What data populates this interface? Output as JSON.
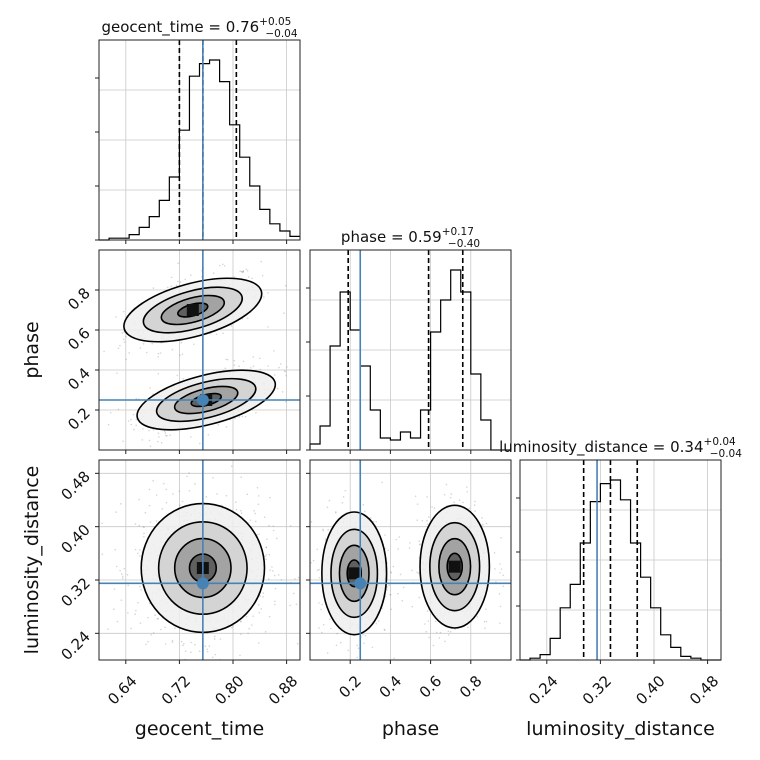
{
  "chart_data": {
    "type": "corner",
    "parameters": [
      "geocent_time",
      "phase",
      "luminosity_distance"
    ],
    "injection": {
      "geocent_time": 0.755,
      "phase": 0.25,
      "luminosity_distance": 0.315
    },
    "colors": {
      "injection": "#4682b4",
      "histogram": "#000000",
      "grid": "#c8c8c8",
      "samples": "#888888"
    },
    "diagonal": [
      {
        "param": "geocent_time",
        "title": "geocent_time = 0.76",
        "title_sup": "+0.05",
        "title_sub": "−0.04",
        "range": [
          0.6,
          0.9
        ],
        "bins": [
          0.6,
          0.615,
          0.63,
          0.645,
          0.66,
          0.675,
          0.69,
          0.705,
          0.72,
          0.735,
          0.75,
          0.765,
          0.78,
          0.795,
          0.81,
          0.825,
          0.84,
          0.855,
          0.87,
          0.885,
          0.9
        ],
        "counts": [
          0.0,
          0.01,
          0.01,
          0.03,
          0.07,
          0.13,
          0.22,
          0.35,
          0.61,
          0.91,
          0.98,
          1.0,
          0.88,
          0.64,
          0.46,
          0.3,
          0.17,
          0.09,
          0.05,
          0.02
        ],
        "quantiles": [
          0.72,
          0.755,
          0.805
        ]
      },
      {
        "param": "phase",
        "title": "phase = 0.59",
        "title_sup": "+0.17",
        "title_sub": "−0.40",
        "range": [
          0.0,
          1.0
        ],
        "bins": [
          0.0,
          0.05,
          0.1,
          0.15,
          0.2,
          0.25,
          0.3,
          0.35,
          0.4,
          0.45,
          0.5,
          0.55,
          0.6,
          0.65,
          0.7,
          0.75,
          0.8,
          0.85,
          0.9,
          0.95,
          1.0
        ],
        "counts": [
          0.03,
          0.12,
          0.52,
          0.79,
          0.6,
          0.42,
          0.2,
          0.06,
          0.05,
          0.09,
          0.06,
          0.2,
          0.59,
          0.75,
          0.9,
          0.79,
          0.38,
          0.15,
          0.0,
          0.0
        ],
        "quantiles": [
          0.19,
          0.59,
          0.76
        ]
      },
      {
        "param": "luminosity_distance",
        "title": "luminosity_distance = 0.34",
        "title_sup": "+0.04",
        "title_sub": "−0.04",
        "range": [
          0.2,
          0.5
        ],
        "bins": [
          0.2,
          0.215,
          0.23,
          0.245,
          0.26,
          0.275,
          0.29,
          0.305,
          0.32,
          0.335,
          0.35,
          0.365,
          0.38,
          0.395,
          0.41,
          0.425,
          0.44,
          0.455,
          0.47,
          0.485,
          0.5
        ],
        "counts": [
          0.0,
          0.01,
          0.03,
          0.12,
          0.29,
          0.42,
          0.65,
          0.88,
          0.98,
          1.0,
          0.89,
          0.65,
          0.46,
          0.29,
          0.14,
          0.07,
          0.02,
          0.01,
          0.0,
          0.0
        ],
        "quantiles": [
          0.295,
          0.335,
          0.375
        ]
      }
    ],
    "contour_levels": [
      0.25,
      0.45,
      0.7,
      0.9
    ],
    "pairs": [
      {
        "x": "geocent_time",
        "y": "phase",
        "xlim": [
          0.6,
          0.9
        ],
        "ylim": [
          0.0,
          1.0
        ],
        "blobs": [
          {
            "cx": 0.74,
            "cy": 0.7,
            "sx": 0.04,
            "sy": 0.075,
            "rho": 0.55,
            "w": 0.5
          },
          {
            "cx": 0.76,
            "cy": 0.25,
            "sx": 0.04,
            "sy": 0.07,
            "rho": 0.55,
            "w": 0.5
          }
        ]
      },
      {
        "x": "geocent_time",
        "y": "luminosity_distance",
        "xlim": [
          0.6,
          0.9
        ],
        "ylim": [
          0.2,
          0.5
        ],
        "blobs": [
          {
            "cx": 0.755,
            "cy": 0.338,
            "sx": 0.04,
            "sy": 0.042,
            "rho": 0.0,
            "w": 1.0
          }
        ]
      },
      {
        "x": "phase",
        "y": "luminosity_distance",
        "xlim": [
          0.0,
          1.0
        ],
        "ylim": [
          0.2,
          0.5
        ],
        "blobs": [
          {
            "cx": 0.22,
            "cy": 0.33,
            "sx": 0.07,
            "sy": 0.04,
            "rho": 0.0,
            "w": 0.5
          },
          {
            "cx": 0.72,
            "cy": 0.34,
            "sx": 0.075,
            "sy": 0.04,
            "rho": 0.0,
            "w": 0.5
          }
        ]
      }
    ],
    "ticks": {
      "geocent_time": {
        "values": [
          0.64,
          0.72,
          0.8,
          0.88
        ],
        "labels": [
          "0.64",
          "0.72",
          "0.80",
          "0.88"
        ]
      },
      "phase": {
        "values": [
          0.2,
          0.4,
          0.6,
          0.8
        ],
        "labels": [
          "0.2",
          "0.4",
          "0.6",
          "0.8"
        ]
      },
      "luminosity_distance": {
        "values": [
          0.24,
          0.32,
          0.4,
          0.48
        ],
        "labels": [
          "0.24",
          "0.32",
          "0.40",
          "0.48"
        ]
      }
    },
    "xlabels": [
      "geocent_time",
      "phase",
      "luminosity_distance"
    ],
    "ylabels": [
      "phase",
      "luminosity_distance"
    ],
    "grid": true
  }
}
